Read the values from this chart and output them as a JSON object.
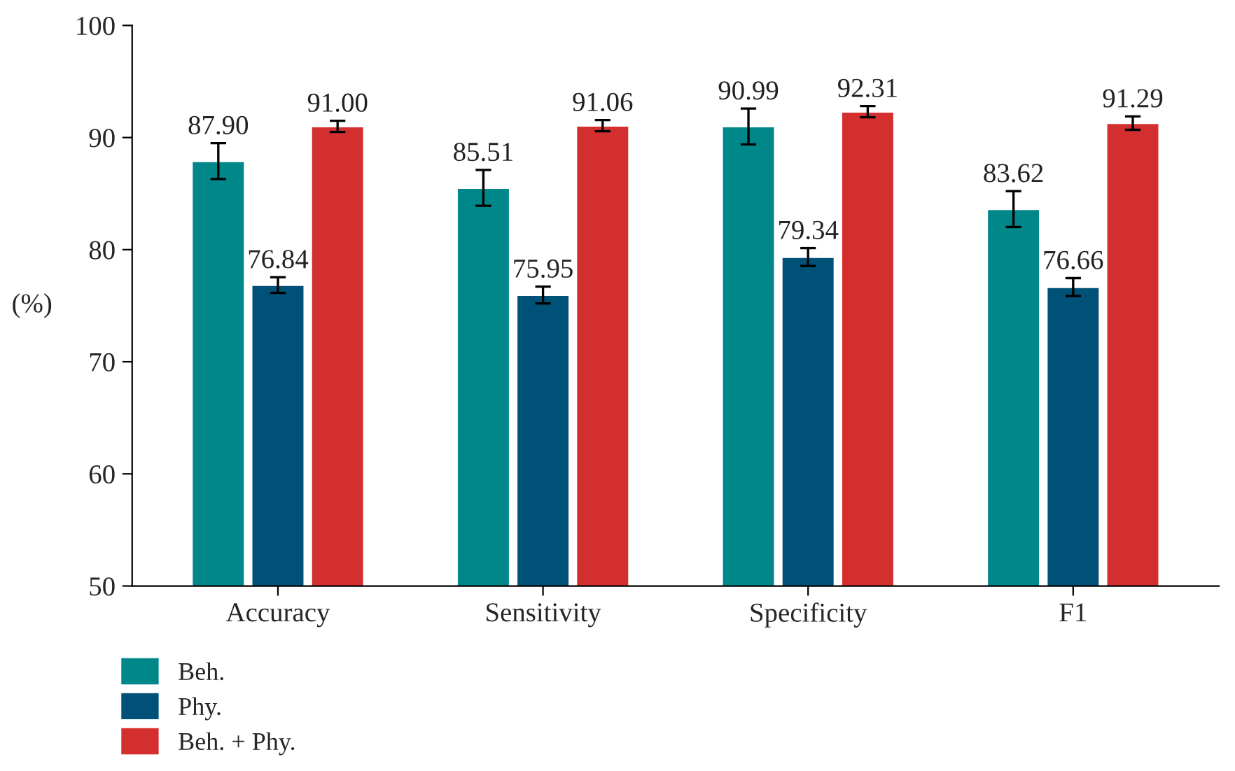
{
  "chart_data": {
    "type": "bar",
    "ylabel": "(%)",
    "categories": [
      "Accuracy",
      "Sensitivity",
      "Specificity",
      "F1"
    ],
    "series": [
      {
        "name": "Beh.",
        "color": "#00878a",
        "values": [
          87.9,
          85.51,
          90.99,
          83.62
        ],
        "value_labels": [
          "87.90",
          "85.51",
          "90.99",
          "83.62"
        ],
        "errors": [
          1.6,
          1.6,
          1.6,
          1.6
        ]
      },
      {
        "name": "Phy.",
        "color": "#005178",
        "values": [
          76.84,
          75.95,
          79.34,
          76.66
        ],
        "value_labels": [
          "76.84",
          "75.95",
          "79.34",
          "76.66"
        ],
        "errors": [
          0.7,
          0.75,
          0.8,
          0.8
        ]
      },
      {
        "name": "Beh. + Phy.",
        "color": "#d42f2f",
        "values": [
          91.0,
          91.06,
          92.31,
          91.29
        ],
        "value_labels": [
          "91.00",
          "91.06",
          "92.31",
          "91.29"
        ],
        "errors": [
          0.5,
          0.5,
          0.5,
          0.6
        ]
      }
    ],
    "ylim": [
      50,
      100
    ],
    "yticks": [
      50,
      60,
      70,
      80,
      90,
      100
    ],
    "grid": false,
    "legend": "bottom left"
  }
}
